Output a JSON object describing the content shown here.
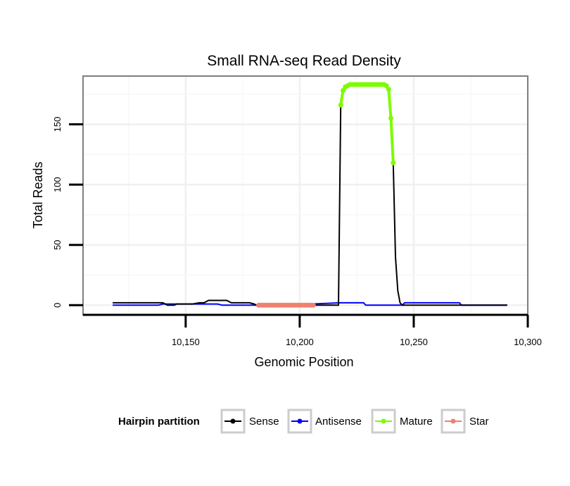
{
  "chart_data": {
    "type": "line",
    "title": "Small RNA-seq Read Density",
    "xlabel": "Genomic Position",
    "ylabel": "Total Reads",
    "xlim": [
      10105,
      10300
    ],
    "ylim": [
      -8,
      190
    ],
    "x_ticks": [
      10150,
      10200,
      10250,
      10300
    ],
    "x_tick_labels": [
      "10,150",
      "10,200",
      "10,250",
      "10,300"
    ],
    "y_ticks": [
      0,
      50,
      100,
      150
    ],
    "y_tick_labels": [
      "0",
      "50",
      "100",
      "150"
    ],
    "grid": true,
    "legend": {
      "title": "Hairpin partition",
      "position": "bottom",
      "entries": [
        {
          "label": "Sense",
          "color": "#000000"
        },
        {
          "label": "Antisense",
          "color": "#0000ff"
        },
        {
          "label": "Mature",
          "color": "#7cfc00"
        },
        {
          "label": "Star",
          "color": "#f08070"
        }
      ]
    },
    "series": [
      {
        "name": "Sense",
        "color": "#000000",
        "points": [
          [
            10118,
            2
          ],
          [
            10140,
            2
          ],
          [
            10142,
            0
          ],
          [
            10145,
            0
          ],
          [
            10146,
            1
          ],
          [
            10153,
            1
          ],
          [
            10156,
            2
          ],
          [
            10158,
            2
          ],
          [
            10160,
            4
          ],
          [
            10168,
            4
          ],
          [
            10170,
            2
          ],
          [
            10178,
            2
          ],
          [
            10180,
            1
          ],
          [
            10181,
            0
          ],
          [
            10217,
            0
          ],
          [
            10218,
            166
          ],
          [
            10219,
            178
          ],
          [
            10220,
            181
          ],
          [
            10222,
            183
          ],
          [
            10230,
            183
          ],
          [
            10237,
            183
          ],
          [
            10238,
            182
          ],
          [
            10239,
            176
          ],
          [
            10240,
            155
          ],
          [
            10241,
            118
          ],
          [
            10242,
            40
          ],
          [
            10243,
            12
          ],
          [
            10244,
            2
          ],
          [
            10245,
            0
          ],
          [
            10291,
            0
          ]
        ]
      },
      {
        "name": "Antisense",
        "color": "#0000ff",
        "points": [
          [
            10118,
            0
          ],
          [
            10138,
            0
          ],
          [
            10140,
            1
          ],
          [
            10148,
            1
          ],
          [
            10150,
            1
          ],
          [
            10164,
            1
          ],
          [
            10166,
            0
          ],
          [
            10200,
            0
          ],
          [
            10205,
            1
          ],
          [
            10218,
            2
          ],
          [
            10228,
            2
          ],
          [
            10229,
            0
          ],
          [
            10245,
            0
          ],
          [
            10246,
            2
          ],
          [
            10270,
            2
          ],
          [
            10271,
            0
          ],
          [
            10291,
            0
          ]
        ]
      },
      {
        "name": "Mature",
        "color": "#7cfc00",
        "points": [
          [
            10218,
            166
          ],
          [
            10219,
            178
          ],
          [
            10220,
            181
          ],
          [
            10221,
            182
          ],
          [
            10222,
            183
          ],
          [
            10223,
            183
          ],
          [
            10224,
            183
          ],
          [
            10225,
            183
          ],
          [
            10226,
            183
          ],
          [
            10227,
            183
          ],
          [
            10228,
            183
          ],
          [
            10229,
            183
          ],
          [
            10230,
            183
          ],
          [
            10231,
            183
          ],
          [
            10232,
            183
          ],
          [
            10233,
            183
          ],
          [
            10234,
            183
          ],
          [
            10235,
            183
          ],
          [
            10236,
            183
          ],
          [
            10237,
            183
          ],
          [
            10238,
            182
          ],
          [
            10239,
            179
          ],
          [
            10240,
            155
          ],
          [
            10241,
            118
          ]
        ]
      },
      {
        "name": "Star",
        "color": "#f08070",
        "points": [
          [
            10182,
            0
          ],
          [
            10183,
            0
          ],
          [
            10184,
            0
          ],
          [
            10185,
            0
          ],
          [
            10186,
            0
          ],
          [
            10187,
            0
          ],
          [
            10188,
            0
          ],
          [
            10189,
            0
          ],
          [
            10190,
            0
          ],
          [
            10191,
            0
          ],
          [
            10192,
            0
          ],
          [
            10193,
            0
          ],
          [
            10194,
            0
          ],
          [
            10195,
            0
          ],
          [
            10196,
            0
          ],
          [
            10197,
            0
          ],
          [
            10198,
            0
          ],
          [
            10199,
            0
          ],
          [
            10200,
            0
          ],
          [
            10201,
            0
          ],
          [
            10202,
            0
          ],
          [
            10203,
            0
          ],
          [
            10204,
            0
          ],
          [
            10205,
            0
          ],
          [
            10206,
            0
          ]
        ]
      }
    ]
  }
}
